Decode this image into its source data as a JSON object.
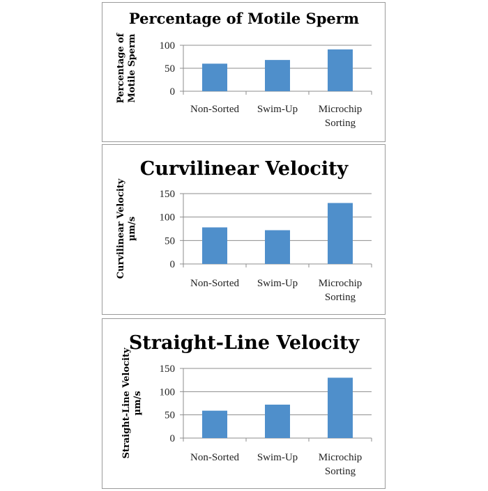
{
  "chart_data": [
    {
      "type": "bar",
      "title": "Percentage of Motile Sperm",
      "ylabel": [
        "Percentage of",
        "Motile Sperm"
      ],
      "categories": [
        [
          "Non-Sorted"
        ],
        [
          "Swim-Up"
        ],
        [
          "Microchip",
          "Sorting"
        ]
      ],
      "values": [
        60,
        68,
        91
      ],
      "yticks": [
        0,
        50,
        100
      ],
      "ylim": [
        0,
        100
      ],
      "grid": true,
      "bar_color": "#4f8fcb"
    },
    {
      "type": "bar",
      "title": "Curvilinear Velocity",
      "ylabel": [
        "Curvilinear Velocity",
        "µm/s"
      ],
      "categories": [
        [
          "Non-Sorted"
        ],
        [
          "Swim-Up"
        ],
        [
          "Microchip",
          "Sorting"
        ]
      ],
      "values": [
        78,
        72,
        130
      ],
      "yticks": [
        0,
        50,
        100,
        150
      ],
      "ylim": [
        0,
        150
      ],
      "grid": true,
      "bar_color": "#4f8fcb"
    },
    {
      "type": "bar",
      "title": "Straight-Line Velocity",
      "ylabel": [
        "Straight-Line Velocity",
        "µm/s"
      ],
      "categories": [
        [
          "Non-Sorted"
        ],
        [
          "Swim-Up"
        ],
        [
          "Microchip",
          "Sorting"
        ]
      ],
      "values": [
        59,
        72,
        130
      ],
      "yticks": [
        0,
        50,
        100,
        150
      ],
      "ylim": [
        0,
        150
      ],
      "grid": true,
      "bar_color": "#4f8fcb"
    }
  ]
}
